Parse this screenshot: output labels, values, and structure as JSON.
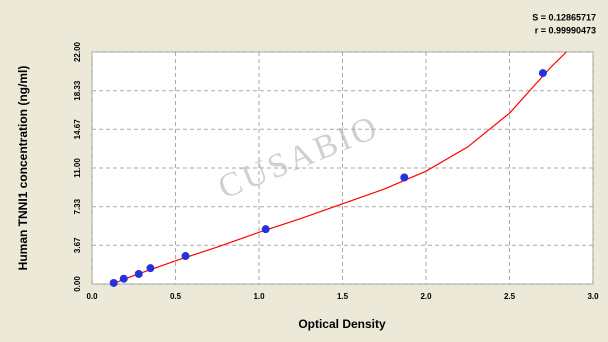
{
  "chart_data": {
    "type": "scatter",
    "annotations": [
      "S = 0.12865717",
      "r = 0.99990473"
    ],
    "watermark": "CUSABIO",
    "x_label": "Optical Density",
    "y_label": "Human TNNI1 concentration (ng/ml)",
    "xlim": [
      0,
      3
    ],
    "ylim": [
      0,
      22
    ],
    "xticks": [
      {
        "value": 0,
        "label": "0.0"
      },
      0.5,
      {
        "value": 1,
        "label": "1.0"
      },
      1.5,
      {
        "value": 2,
        "label": "2.0"
      },
      2.5,
      {
        "value": 3,
        "label": "3.0"
      }
    ],
    "yticks": [
      {
        "value": 0,
        "label": "0.00"
      },
      3.67,
      7.33,
      {
        "value": 11,
        "label": "11.00"
      },
      14.67,
      18.33,
      {
        "value": 22,
        "label": "22.00"
      }
    ],
    "grid": true,
    "points": {
      "color": "#2233dd",
      "x": [
        0.13,
        0.19,
        0.28,
        0.35,
        0.56,
        1.04,
        1.87,
        2.7
      ],
      "y": [
        0.1,
        0.5,
        0.95,
        1.5,
        2.65,
        5.2,
        10.1,
        20.0
      ]
    },
    "fit": {
      "color": "#ff0000",
      "x": [
        0.12,
        0.25,
        0.5,
        0.75,
        1.0,
        1.25,
        1.5,
        1.75,
        2.0,
        2.25,
        2.5,
        2.75,
        2.84
      ],
      "y": [
        0.0,
        0.8,
        2.2,
        3.5,
        4.9,
        6.2,
        7.6,
        9.0,
        10.7,
        13.0,
        16.2,
        20.6,
        22.0
      ]
    }
  }
}
